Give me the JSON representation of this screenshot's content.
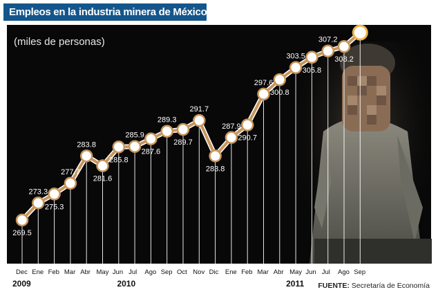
{
  "header": {
    "title": "Empleos en la industria minera de México"
  },
  "chart_data": {
    "type": "line",
    "title": "Empleos en la industria minera de México",
    "ylabel": "(miles de personas)",
    "categories": [
      "Dec",
      "Ene",
      "Feb",
      "Mar",
      "Abr",
      "May",
      "Jun",
      "Jul",
      "Ago",
      "Sep",
      "Oct",
      "Nov",
      "Dic",
      "Ene",
      "Feb",
      "Mar",
      "Abr",
      "May",
      "Jun",
      "Jul",
      "Ago",
      "Sep"
    ],
    "years": [
      {
        "label": "2009",
        "from": 0,
        "to": 0
      },
      {
        "label": "2010",
        "from": 1,
        "to": 12
      },
      {
        "label": "2011",
        "from": 13,
        "to": 21
      }
    ],
    "series": [
      {
        "values": [
          269.5,
          273.3,
          275.3,
          277.7,
          283.8,
          281.6,
          285.8,
          285.9,
          287.6,
          289.3,
          289.7,
          291.7,
          283.8,
          287.9,
          290.7,
          297.6,
          300.8,
          303.5,
          305.8,
          307.2,
          308.2,
          311.3
        ]
      }
    ],
    "highlight_index": 21,
    "colors": {
      "line": "#c8955a",
      "highlight": "#f0b24a",
      "marker": "#ffffff",
      "label": "#ffffff",
      "grid": "#ffffff"
    }
  },
  "source": {
    "label": "FUENTE:",
    "text": "Secretaría de Economía"
  }
}
